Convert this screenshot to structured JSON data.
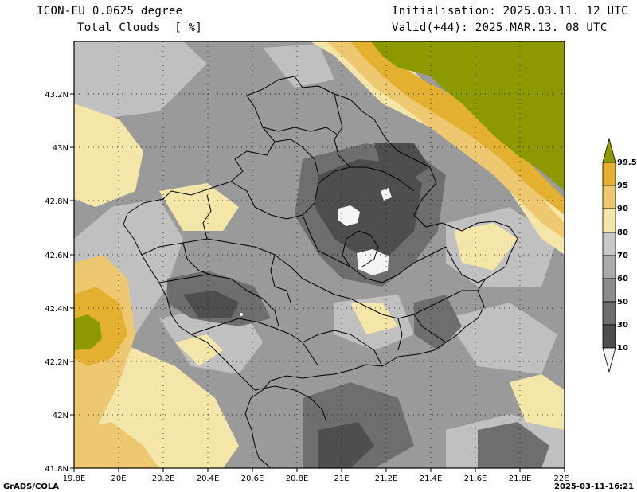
{
  "header": {
    "model": "ICON-EU 0.0625 degree",
    "field": "Total Clouds  [ %]",
    "init": "Initialisation: 2025.03.11. 12 UTC",
    "valid": "Valid(+44): 2025.MAR.13. 08 UTC"
  },
  "footer": {
    "credit": "GrADS/COLA",
    "timestamp": "2025-03-11-16:21"
  },
  "axes": {
    "lon_labels": [
      "19.8E",
      "20E",
      "20.2E",
      "20.4E",
      "20.6E",
      "20.8E",
      "21E",
      "21.2E",
      "21.4E",
      "21.6E",
      "21.8E",
      "22E"
    ],
    "lat_labels": [
      "43.2N",
      "43N",
      "42.8N",
      "42.6N",
      "42.4N",
      "42.2N",
      "42N",
      "41.8N"
    ]
  },
  "colorbar": {
    "labels": [
      "99.5",
      "95",
      "90",
      "80",
      "70",
      "60",
      "50",
      "30",
      "10"
    ],
    "colors": [
      "#8c9a00",
      "#e3b030",
      "#eec870",
      "#f3e6a8",
      "#c8c8c8",
      "#aaaaaa",
      "#8c8c8c",
      "#6e6e6e",
      "#4e4e4e"
    ]
  },
  "colors": {
    "background_cloud": "#9a9a9a",
    "clear_sky": "#f4f4f4",
    "overcast": "#8c9a00",
    "border": "#000000"
  }
}
